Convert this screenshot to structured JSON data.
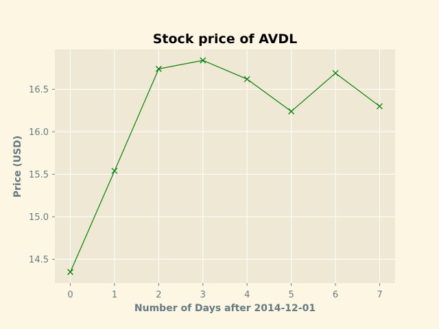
{
  "colors": {
    "background": "#fdf6e3",
    "plot_area": "#eee8d5",
    "grid": "#ffffff",
    "text": "#657b83",
    "title": "#000000",
    "series": "#008000"
  },
  "chart_data": {
    "type": "line",
    "title": "Stock price of AVDL",
    "xlabel": "Number of Days after 2014-12-01",
    "ylabel": "Price (USD)",
    "x": [
      0,
      1,
      2,
      3,
      4,
      5,
      6,
      7
    ],
    "series": [
      {
        "values": [
          14.35,
          15.54,
          16.74,
          16.84,
          16.62,
          16.24,
          16.69,
          16.3
        ],
        "color": "#008000",
        "marker": "x"
      }
    ],
    "xlim": [
      -0.35,
      7.35
    ],
    "ylim": [
      14.22,
      16.97
    ],
    "xticks": [
      0,
      1,
      2,
      3,
      4,
      5,
      6,
      7
    ],
    "xtick_labels": [
      "0",
      "1",
      "2",
      "3",
      "4",
      "5",
      "6",
      "7"
    ],
    "yticks": [
      14.5,
      15.0,
      15.5,
      16.0,
      16.5
    ],
    "ytick_labels": [
      "14.5",
      "15.0",
      "15.5",
      "16.0",
      "16.5"
    ],
    "grid": true,
    "legend": false
  }
}
